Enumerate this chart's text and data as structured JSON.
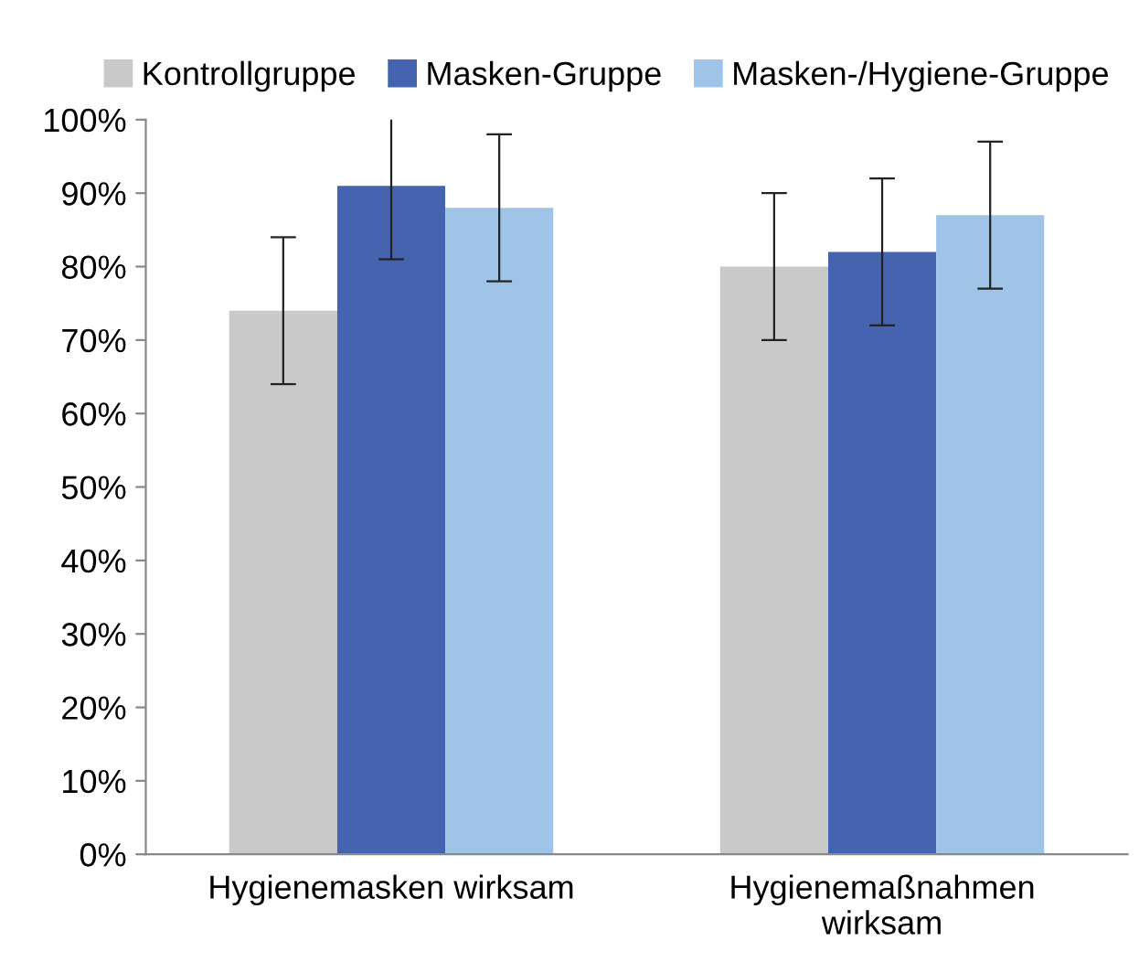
{
  "chart_data": {
    "type": "bar",
    "categories": [
      "Hygienemasken wirksam",
      "Hygienemaßnahmen\nwirksam"
    ],
    "series": [
      {
        "name": "Kontrollgruppe",
        "color": "#c9c9c9",
        "values": [
          74,
          80
        ],
        "errors": [
          10,
          10
        ]
      },
      {
        "name": "Masken-Gruppe",
        "color": "#4563ae",
        "values": [
          91,
          82
        ],
        "errors": [
          10,
          10
        ]
      },
      {
        "name": "Masken-/Hygiene-Gruppe",
        "color": "#9fc4e8",
        "values": [
          88,
          87
        ],
        "errors": [
          10,
          10
        ]
      }
    ],
    "ylim": [
      0,
      100
    ],
    "yticks": [
      {
        "value": 0,
        "label": "0%"
      },
      {
        "value": 10,
        "label": "10%"
      },
      {
        "value": 20,
        "label": "20%"
      },
      {
        "value": 30,
        "label": "30%"
      },
      {
        "value": 40,
        "label": "40%"
      },
      {
        "value": 50,
        "label": "50%"
      },
      {
        "value": 60,
        "label": "60%"
      },
      {
        "value": 70,
        "label": "70%"
      },
      {
        "value": 80,
        "label": "80%"
      },
      {
        "value": 90,
        "label": "90%"
      },
      {
        "value": 100,
        "label": "100%"
      }
    ],
    "grid": false,
    "legend": "top"
  }
}
